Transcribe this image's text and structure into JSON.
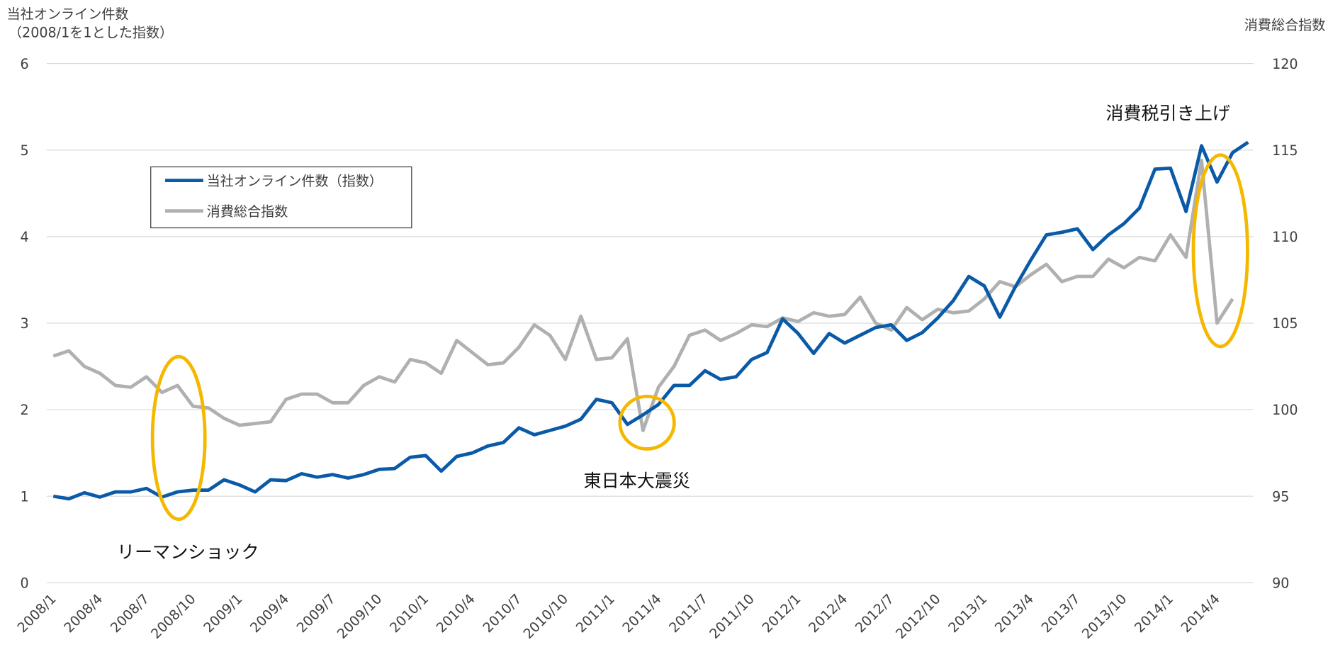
{
  "chart_data": {
    "type": "line",
    "y_label": [
      "当社オンライン件数",
      "（2008/1を1とした指数）"
    ],
    "y2_label": "消費総合指数",
    "categories": [
      "2008/1",
      null,
      null,
      "2008/4",
      null,
      null,
      "2008/7",
      null,
      null,
      "2008/10",
      null,
      null,
      "2009/1",
      null,
      null,
      "2009/4",
      null,
      null,
      "2009/7",
      null,
      null,
      "2009/10",
      null,
      null,
      "2010/1",
      null,
      null,
      "2010/4",
      null,
      null,
      "2010/7",
      null,
      null,
      "2010/10",
      null,
      null,
      "2011/1",
      null,
      null,
      "2011/4",
      null,
      null,
      "2011/7",
      null,
      null,
      "2011/10",
      null,
      null,
      "2012/1",
      null,
      null,
      "2012/4",
      null,
      null,
      "2012/7",
      null,
      null,
      "2012/10",
      null,
      null,
      "2013/1",
      null,
      null,
      "2013/4",
      null,
      null,
      "2013/7",
      null,
      null,
      "2013/10",
      null,
      null,
      "2014/1",
      null,
      null,
      "2014/4",
      null,
      null
    ],
    "series": [
      {
        "name": "当社オンライン件数（指数）",
        "color": "#0a5aa8",
        "values": [
          1.0,
          0.97,
          1.04,
          0.99,
          1.05,
          1.05,
          1.09,
          0.99,
          1.05,
          1.07,
          1.07,
          1.19,
          1.13,
          1.05,
          1.19,
          1.18,
          1.26,
          1.22,
          1.25,
          1.21,
          1.25,
          1.31,
          1.32,
          1.45,
          1.47,
          1.29,
          1.46,
          1.5,
          1.58,
          1.62,
          1.79,
          1.71,
          1.76,
          1.81,
          1.89,
          2.12,
          2.08,
          1.83,
          1.94,
          2.06,
          2.28,
          2.28,
          2.45,
          2.35,
          2.38,
          2.58,
          2.66,
          3.05,
          2.88,
          2.65,
          2.88,
          2.77,
          2.86,
          2.95,
          2.98,
          2.8,
          2.89,
          3.06,
          3.26,
          3.54,
          3.43,
          3.07,
          3.42,
          3.73,
          4.02,
          4.05,
          4.09,
          3.85,
          4.02,
          4.15,
          4.33,
          4.78,
          4.79,
          4.29,
          5.05,
          4.63,
          4.97,
          5.09
        ]
      },
      {
        "name": "消費総合指数",
        "color": "#b0b0b0",
        "axis": "y2",
        "values": [
          103.1,
          103.4,
          102.5,
          102.1,
          101.4,
          101.3,
          101.9,
          101.0,
          101.4,
          100.2,
          100.1,
          99.5,
          99.1,
          99.2,
          99.3,
          100.6,
          100.9,
          100.9,
          100.4,
          100.4,
          101.4,
          101.9,
          101.6,
          102.9,
          102.7,
          102.1,
          104.0,
          103.3,
          102.6,
          102.7,
          103.6,
          104.9,
          104.3,
          102.9,
          105.4,
          102.9,
          103.0,
          104.1,
          98.8,
          101.3,
          102.5,
          104.3,
          104.6,
          104.0,
          104.4,
          104.9,
          104.8,
          105.3,
          105.1,
          105.6,
          105.4,
          105.5,
          106.5,
          105.0,
          104.6,
          105.9,
          105.2,
          105.8,
          105.6,
          105.7,
          106.4,
          107.4,
          107.1,
          107.8,
          108.4,
          107.4,
          107.7,
          107.7,
          108.7,
          108.2,
          108.8,
          108.6,
          110.1,
          108.8,
          114.4,
          105.0,
          106.4,
          null
        ]
      }
    ],
    "ylim": [
      0,
      6
    ],
    "yticks": [
      0,
      1,
      2,
      3,
      4,
      5,
      6
    ],
    "y2lim": [
      90,
      120
    ],
    "y2ticks": [
      90,
      95,
      100,
      105,
      110,
      115,
      120
    ],
    "grid": true,
    "legend": "upper left",
    "annotations": [
      "リーマンショック",
      "東日本大震災",
      "消費税引き上げ"
    ],
    "highlight_color": "#f5b800"
  }
}
